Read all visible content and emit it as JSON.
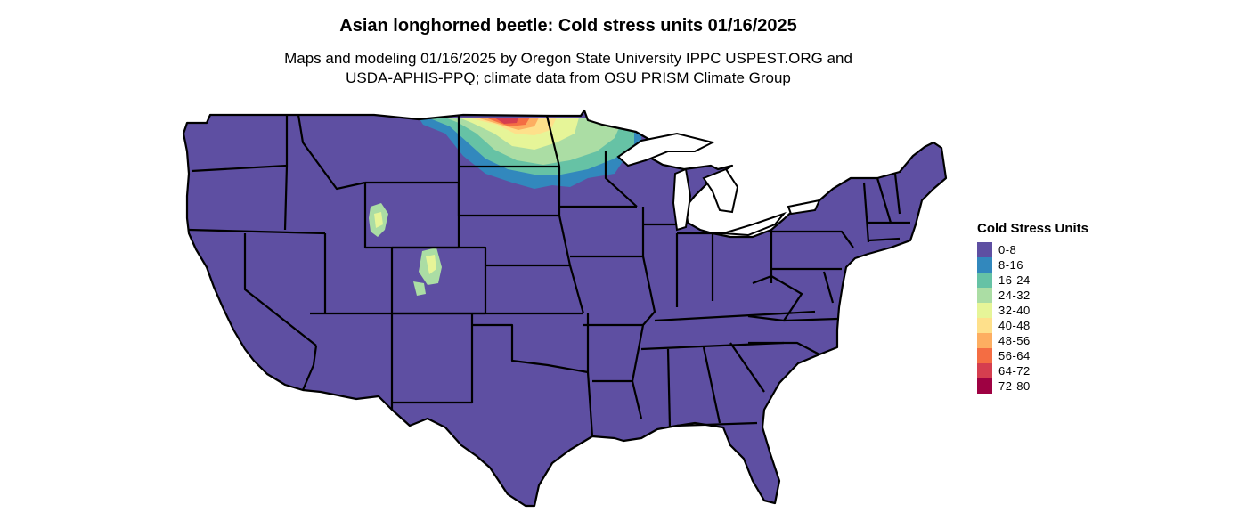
{
  "header": {
    "title": "Asian longhorned beetle: Cold stress units 01/16/2025",
    "subtitle_line1": "Maps and modeling 01/16/2025 by Oregon State University IPPC USPEST.ORG and",
    "subtitle_line2": "USDA-APHIS-PPQ; climate data from OSU PRISM Climate Group"
  },
  "legend": {
    "title": "Cold Stress Units",
    "items": [
      {
        "label": "0-8",
        "color": "#5e4fa2"
      },
      {
        "label": "8-16",
        "color": "#3288bd"
      },
      {
        "label": "16-24",
        "color": "#66c2a5"
      },
      {
        "label": "24-32",
        "color": "#abdda4"
      },
      {
        "label": "32-40",
        "color": "#e6f598"
      },
      {
        "label": "40-48",
        "color": "#fee08b"
      },
      {
        "label": "48-56",
        "color": "#fdae61"
      },
      {
        "label": "56-64",
        "color": "#f46d43"
      },
      {
        "label": "64-72",
        "color": "#d53e4f"
      },
      {
        "label": "72-80",
        "color": "#9e0142"
      }
    ]
  },
  "map": {
    "base_color": "#5e4fa2",
    "border_color": "#000000"
  }
}
